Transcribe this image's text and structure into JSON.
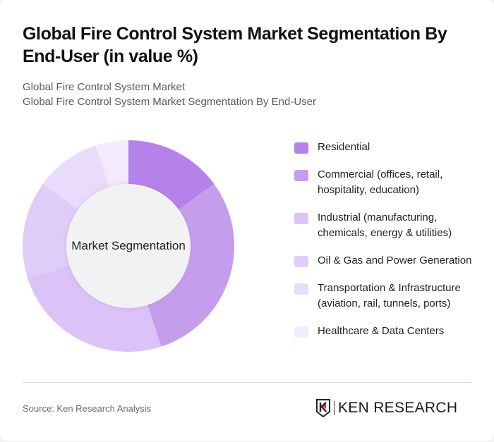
{
  "header": {
    "title": "Global Fire Control System Market Segmentation By End-User (in value %)",
    "subtitle_line1": "Global Fire Control System Market",
    "subtitle_line2": "Global Fire Control System Market Segmentation By End-User"
  },
  "chart": {
    "center_label": "Market Segmentation"
  },
  "legend": [
    {
      "label": "Residential",
      "color": "#b582ea"
    },
    {
      "label": "Commercial (offices, retail, hospitality, education)",
      "color": "#c59ded"
    },
    {
      "label": "Industrial (manufacturing, chemicals, energy & utilities)",
      "color": "#dbc2f7"
    },
    {
      "label": "Oil & Gas and Power Generation",
      "color": "#e0cdf7"
    },
    {
      "label": "Transportation & Infrastructure (aviation, rail, tunnels, ports)",
      "color": "#e9dcfa"
    },
    {
      "label": "Healthcare & Data Centers",
      "color": "#f3ebfc"
    }
  ],
  "footer": {
    "source": "Source: Ken Research Analysis",
    "logo_text": "KEN RESEARCH"
  },
  "chart_data": {
    "type": "pie",
    "title": "Global Fire Control System Market Segmentation By End-User (in value %)",
    "subtitle": "Global Fire Control System Market Segmentation By End-User",
    "center_label": "Market Segmentation",
    "categories": [
      "Residential",
      "Commercial (offices, retail, hospitality, education)",
      "Industrial (manufacturing, chemicals, energy & utilities)",
      "Oil & Gas and Power Generation",
      "Transportation & Infrastructure (aviation, rail, tunnels, ports)",
      "Healthcare & Data Centers"
    ],
    "values": [
      15,
      30,
      25,
      15,
      10,
      5
    ],
    "colors": [
      "#b582ea",
      "#c59ded",
      "#dbc2f7",
      "#e0cdf7",
      "#e9dcfa",
      "#f3ebfc"
    ],
    "donut": true,
    "legend_position": "right",
    "unit": "%"
  }
}
